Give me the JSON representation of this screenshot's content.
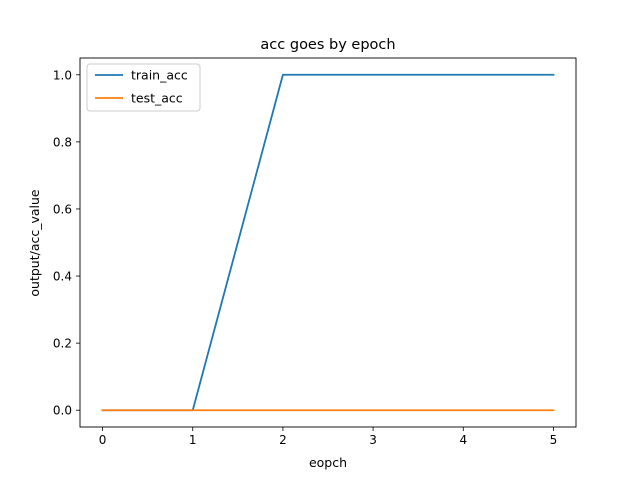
{
  "chart_data": {
    "type": "line",
    "title": "acc goes by epoch",
    "xlabel": "eopch",
    "ylabel": "output/acc_value",
    "x": [
      0,
      1,
      2,
      3,
      4,
      5
    ],
    "xticks": [
      "0",
      "1",
      "2",
      "3",
      "4",
      "5"
    ],
    "yticks": [
      "0.0",
      "0.2",
      "0.4",
      "0.6",
      "0.8",
      "1.0"
    ],
    "xlim": [
      -0.25,
      5.25
    ],
    "ylim": [
      -0.05,
      1.05
    ],
    "grid": false,
    "legend_position": "top-left",
    "series": [
      {
        "name": "train_acc",
        "color": "#1f77b4",
        "values": [
          0,
          0,
          1,
          1,
          1,
          1
        ]
      },
      {
        "name": "test_acc",
        "color": "#ff7f0e",
        "values": [
          0,
          0,
          0,
          0,
          0,
          0
        ]
      }
    ]
  }
}
